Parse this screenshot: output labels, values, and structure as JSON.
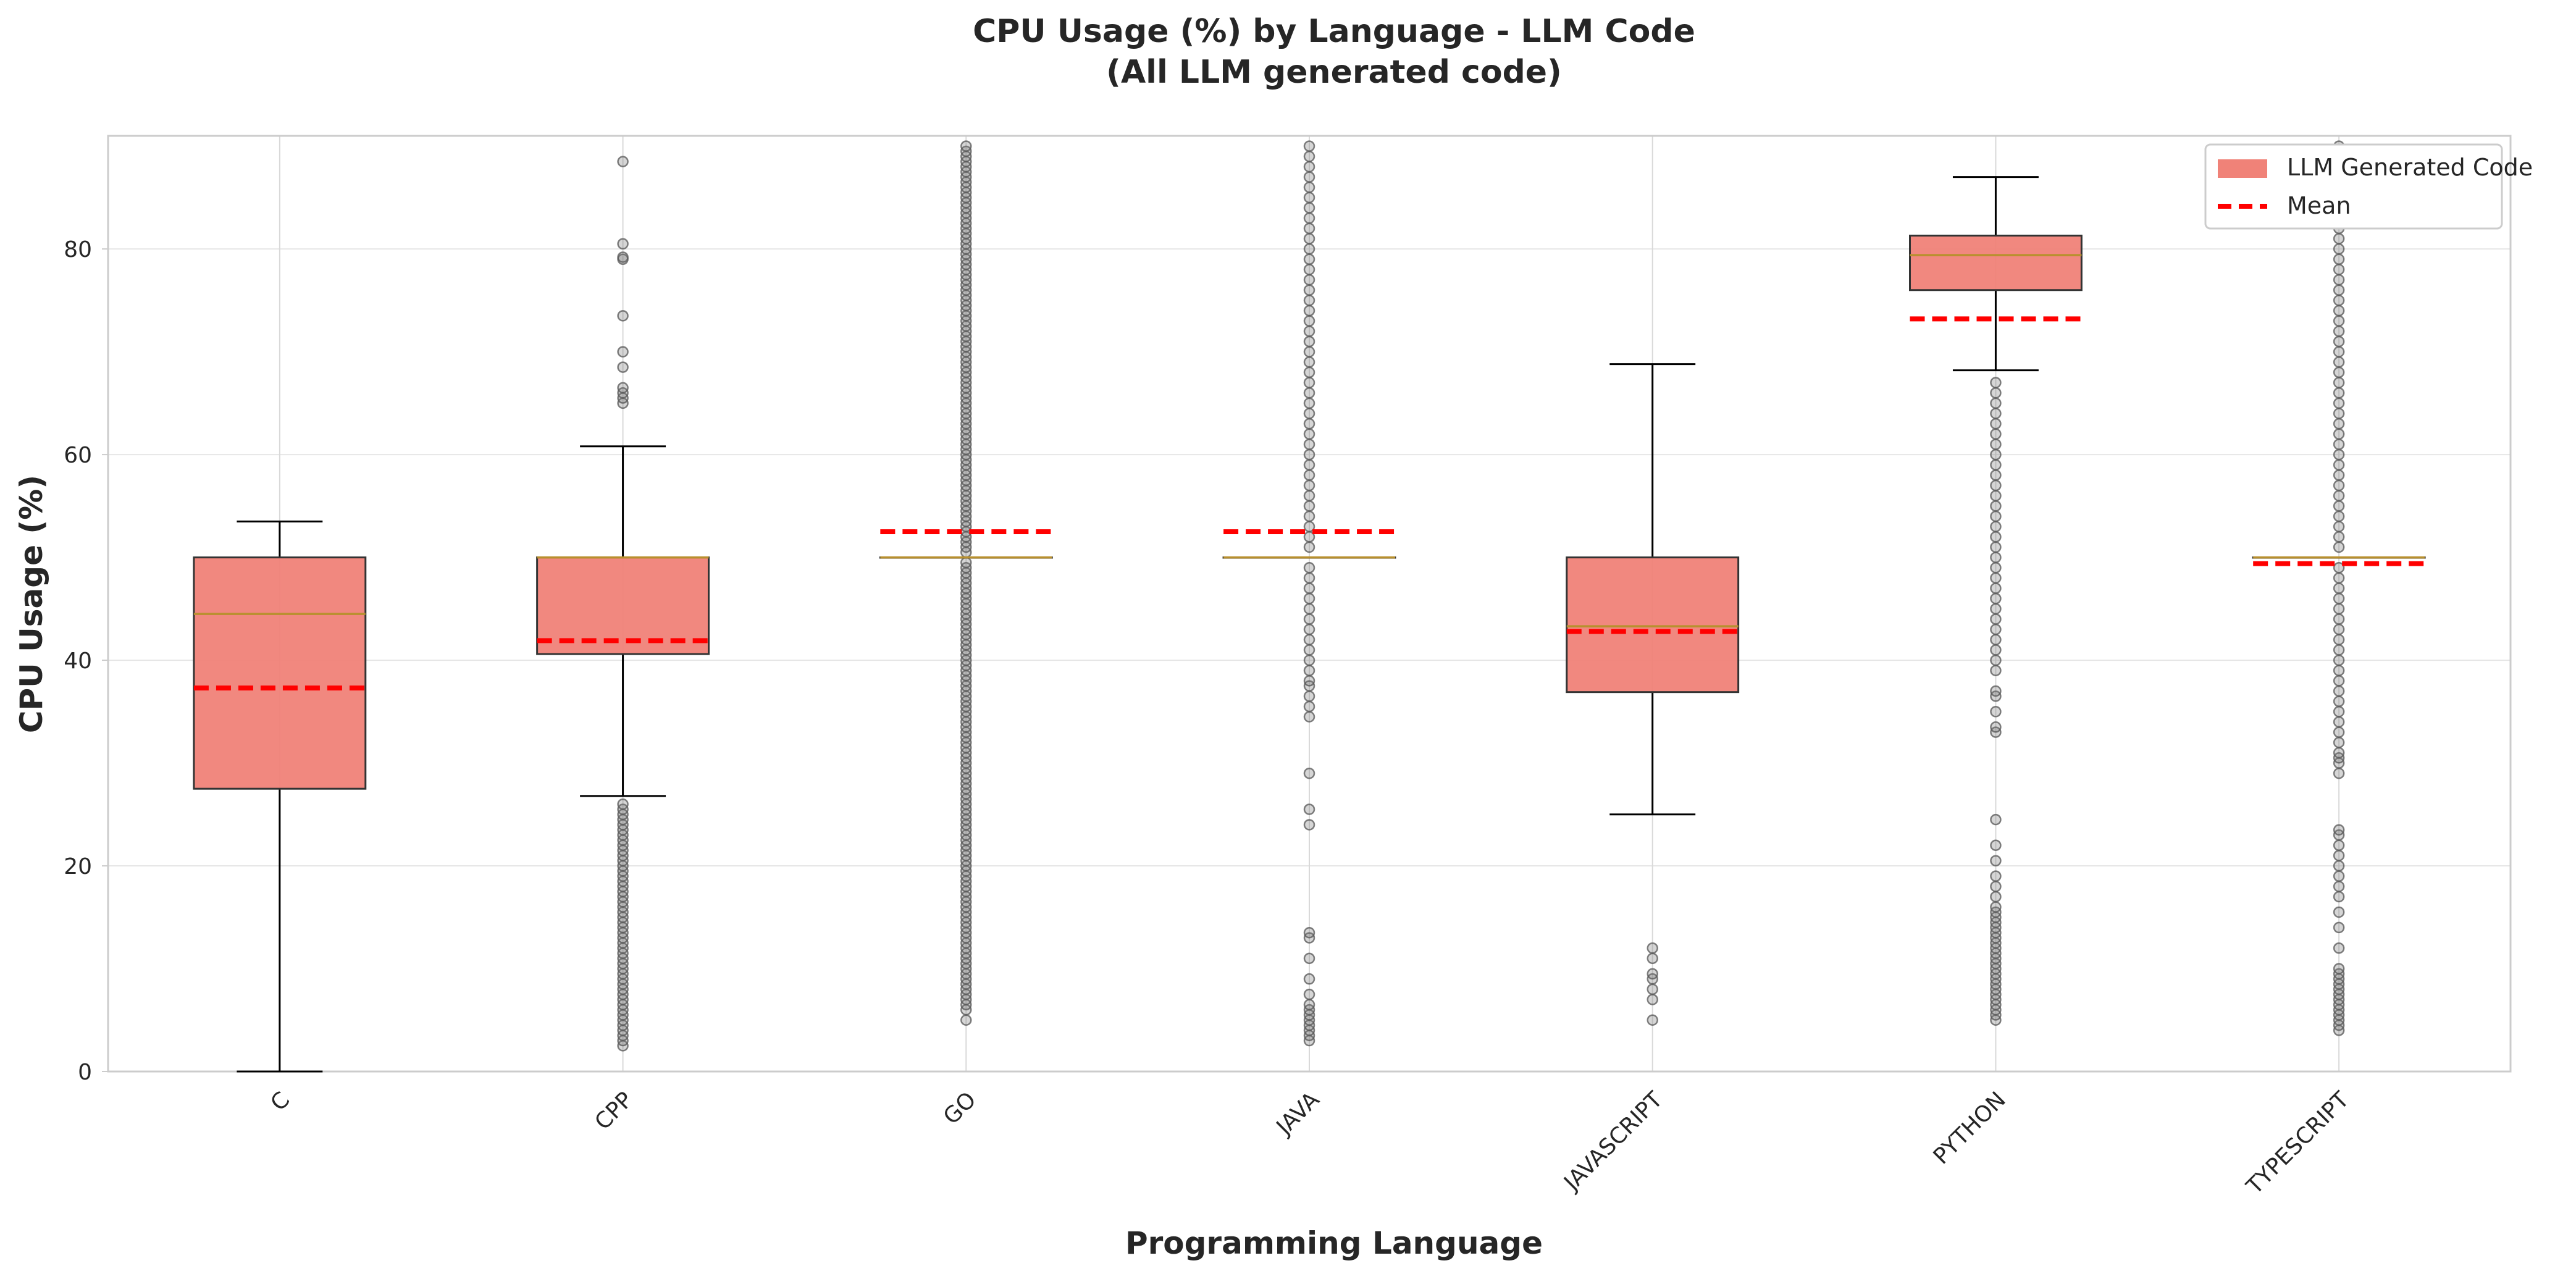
{
  "chart_data": {
    "type": "box",
    "title": "CPU Usage (%) by Language - LLM Code",
    "subtitle": "(All LLM generated code)",
    "xlabel": "Programming Language",
    "ylabel": "CPU Usage (%)",
    "ylim": [
      0,
      91
    ],
    "yticks": [
      0,
      20,
      40,
      60,
      80
    ],
    "grid": true,
    "legend_position": "top-right",
    "legend": {
      "box_label": "LLM Generated Code",
      "mean_label": "Mean"
    },
    "colors": {
      "box_fill": "#f08278",
      "box_edge": "#333333",
      "median": "#b8902e",
      "mean": "#ff0000",
      "whisker": "#000000",
      "outlier": "#555555",
      "grid": "#e6e6e6"
    },
    "categories": [
      "C",
      "CPP",
      "GO",
      "JAVA",
      "JAVASCRIPT",
      "PYTHON",
      "TYPESCRIPT"
    ],
    "boxes": [
      {
        "category": "C",
        "q1": 27.5,
        "median": 44.5,
        "q3": 50,
        "whisker_low": 0,
        "whisker_high": 53.5,
        "mean": 37.3,
        "outliers": []
      },
      {
        "category": "CPP",
        "q1": 40.6,
        "median": 50,
        "q3": 50,
        "whisker_low": 26.8,
        "whisker_high": 60.8,
        "mean": 41.9,
        "outliers": [
          2.5,
          3,
          3.5,
          4,
          4.5,
          5,
          5.5,
          6,
          6.5,
          7,
          7.5,
          8,
          8.5,
          9,
          9.5,
          10,
          10.5,
          11,
          11.5,
          12,
          12.5,
          13,
          13.5,
          14,
          14.5,
          15,
          15.5,
          16,
          16.5,
          17,
          17.5,
          18,
          18.5,
          19,
          19.5,
          20,
          20.5,
          21,
          21.5,
          22,
          22.5,
          23,
          23.5,
          24,
          24.5,
          25,
          25.5,
          26,
          65,
          65.5,
          66,
          66.5,
          68.5,
          70,
          73.5,
          79,
          79.2,
          80.5,
          88.5
        ]
      },
      {
        "category": "GO",
        "q1": 50,
        "median": 50,
        "q3": 50,
        "whisker_low": 50,
        "whisker_high": 50,
        "mean": 52.5,
        "outliers": [
          5,
          6,
          6.5,
          7,
          7.5,
          8,
          8.5,
          9,
          9.5,
          10,
          10.5,
          11,
          11.5,
          12,
          12.5,
          13,
          13.5,
          14,
          14.5,
          15,
          15.5,
          16,
          16.5,
          17,
          17.5,
          18,
          18.5,
          19,
          19.5,
          20,
          20.5,
          21,
          21.5,
          22,
          22.5,
          23,
          23.5,
          24,
          24.5,
          25,
          25.5,
          26,
          26.5,
          27,
          27.5,
          28,
          28.5,
          29,
          29.5,
          30,
          30.5,
          31,
          31.5,
          32,
          32.5,
          33,
          33.5,
          34,
          34.5,
          35,
          35.5,
          36,
          36.5,
          37,
          37.5,
          38,
          38.5,
          39,
          39.5,
          40,
          40.5,
          41,
          41.5,
          42,
          42.5,
          43,
          43.5,
          44,
          44.5,
          45,
          45.5,
          46,
          46.5,
          47,
          47.5,
          48,
          48.5,
          49,
          49.5,
          50.5,
          51,
          51.5,
          52,
          52.5,
          53,
          53.5,
          54,
          54.5,
          55,
          55.5,
          56,
          56.5,
          57,
          57.5,
          58,
          58.5,
          59,
          59.5,
          60,
          60.5,
          61,
          61.5,
          62,
          62.5,
          63,
          63.5,
          64,
          64.5,
          65,
          65.5,
          66,
          66.5,
          67,
          67.5,
          68,
          68.5,
          69,
          69.5,
          70,
          70.5,
          71,
          71.5,
          72,
          72.5,
          73,
          73.5,
          74,
          74.5,
          75,
          75.5,
          76,
          76.5,
          77,
          77.5,
          78,
          78.5,
          79,
          79.5,
          80,
          80.5,
          81,
          81.5,
          82,
          82.5,
          83,
          83.5,
          84,
          84.5,
          85,
          85.5,
          86,
          86.5,
          87,
          87.5,
          88,
          88.5,
          89,
          89.5,
          90
        ]
      },
      {
        "category": "JAVA",
        "q1": 50,
        "median": 50,
        "q3": 50,
        "whisker_low": 50,
        "whisker_high": 50,
        "mean": 52.5,
        "outliers": [
          3,
          3.5,
          4,
          4.5,
          5,
          5.5,
          6,
          6.5,
          7.5,
          9,
          11,
          13,
          13.5,
          24,
          25.5,
          29,
          34.5,
          35.5,
          36.5,
          37.5,
          38,
          39,
          40,
          41,
          42,
          43,
          44,
          45,
          46,
          47,
          48,
          49,
          51,
          52,
          53,
          54,
          55,
          56,
          57,
          58,
          59,
          60,
          61,
          62,
          63,
          64,
          65,
          66,
          67,
          68,
          69,
          70,
          71,
          72,
          73,
          74,
          75,
          76,
          77,
          78,
          79,
          80,
          81,
          82,
          83,
          84,
          85,
          86,
          87,
          88,
          89,
          90
        ]
      },
      {
        "category": "JAVASCRIPT",
        "q1": 36.9,
        "median": 43.3,
        "q3": 50,
        "whisker_low": 25,
        "whisker_high": 68.8,
        "mean": 42.8,
        "outliers": [
          5,
          7,
          8,
          9,
          9.5,
          11,
          12
        ]
      },
      {
        "category": "PYTHON",
        "q1": 76,
        "median": 79.4,
        "q3": 81.3,
        "whisker_low": 68.2,
        "whisker_high": 87,
        "mean": 73.2,
        "outliers": [
          5,
          5.5,
          6,
          6.5,
          7,
          7.5,
          8,
          8.5,
          9,
          9.5,
          10,
          10.5,
          11,
          11.5,
          12,
          12.5,
          13,
          13.5,
          14,
          14.5,
          15,
          15.5,
          16,
          17,
          18,
          19,
          20.5,
          22,
          24.5,
          33,
          33.5,
          35,
          36.5,
          37,
          39,
          40,
          41,
          42,
          43,
          44,
          45,
          46,
          47,
          48,
          49,
          50,
          51,
          52,
          53,
          54,
          55,
          56,
          57,
          58,
          59,
          60,
          61,
          62,
          63,
          64,
          65,
          66,
          67
        ]
      },
      {
        "category": "TYPESCRIPT",
        "q1": 50,
        "median": 50,
        "q3": 50,
        "whisker_low": 50,
        "whisker_high": 50,
        "mean": 49.4,
        "outliers": [
          4,
          4.5,
          5,
          5.5,
          6,
          6.5,
          7,
          7.5,
          8,
          8.5,
          9,
          9.5,
          10,
          12,
          14,
          15.5,
          17,
          18,
          19,
          20,
          21,
          22,
          23,
          23.5,
          29,
          30,
          30.5,
          31,
          32,
          33,
          34,
          35,
          36,
          37,
          38,
          39,
          40,
          41,
          42,
          43,
          44,
          45,
          46,
          47,
          48,
          49,
          51,
          52,
          53,
          54,
          55,
          56,
          57,
          58,
          59,
          60,
          61,
          62,
          63,
          64,
          65,
          66,
          67,
          68,
          69,
          70,
          71,
          72,
          73,
          74,
          75,
          76,
          77,
          78,
          79,
          80,
          81,
          82,
          83,
          84,
          85,
          86,
          87,
          88,
          89,
          90
        ]
      }
    ]
  }
}
